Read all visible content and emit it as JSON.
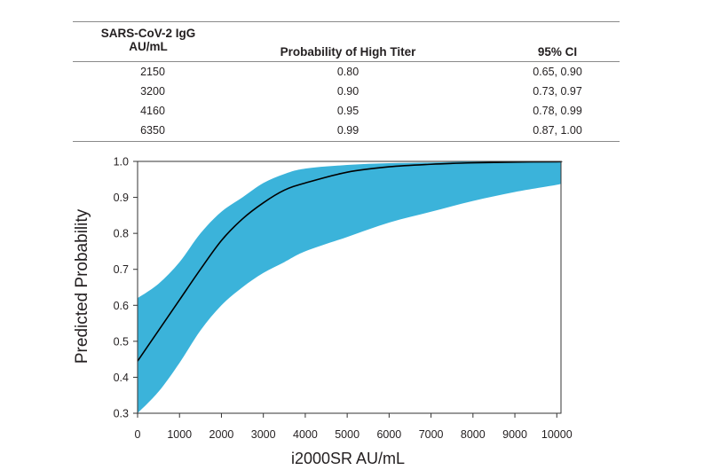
{
  "table": {
    "headers": {
      "col1_line1": "SARS-CoV-2 IgG",
      "col1_line2": "AU/mL",
      "col2": "Probability of High Titer",
      "col3": "95% CI"
    },
    "rows": [
      {
        "igg": "2150",
        "prob": "0.80",
        "ci": "0.65, 0.90"
      },
      {
        "igg": "3200",
        "prob": "0.90",
        "ci": "0.73, 0.97"
      },
      {
        "igg": "4160",
        "prob": "0.95",
        "ci": "0.78, 0.99"
      },
      {
        "igg": "6350",
        "prob": "0.99",
        "ci": "0.87, 1.00"
      }
    ]
  },
  "chart_data": {
    "type": "line",
    "title": "",
    "xlabel": "i2000SR AU/mL",
    "ylabel": "Predicted Probability",
    "xlim": [
      0,
      10100
    ],
    "ylim": [
      0.3,
      1.0
    ],
    "xticks": [
      0,
      1000,
      2000,
      3000,
      4000,
      5000,
      6000,
      7000,
      8000,
      9000,
      10000
    ],
    "yticks": [
      0.3,
      0.4,
      0.5,
      0.6,
      0.7,
      0.8,
      0.9,
      1.0
    ],
    "grid": false,
    "series": [
      {
        "type": "line",
        "color": "#000000",
        "x": [
          0,
          500,
          1000,
          1500,
          2000,
          2500,
          3000,
          3500,
          4000,
          5000,
          6000,
          7000,
          8000,
          9000,
          10000,
          10100
        ],
        "y": [
          0.445,
          0.53,
          0.615,
          0.7,
          0.78,
          0.84,
          0.885,
          0.92,
          0.94,
          0.97,
          0.985,
          0.992,
          0.996,
          0.998,
          0.999,
          0.999
        ]
      },
      {
        "type": "band",
        "color": "#3bb3da",
        "x": [
          0,
          500,
          1000,
          1500,
          2000,
          2500,
          3000,
          3500,
          4000,
          5000,
          6000,
          7000,
          8000,
          9000,
          10000,
          10100
        ],
        "lower": [
          0.3,
          0.36,
          0.44,
          0.53,
          0.6,
          0.65,
          0.69,
          0.72,
          0.75,
          0.79,
          0.83,
          0.86,
          0.89,
          0.915,
          0.935,
          0.94
        ],
        "upper": [
          0.62,
          0.66,
          0.72,
          0.8,
          0.86,
          0.9,
          0.94,
          0.965,
          0.98,
          0.99,
          0.995,
          0.997,
          0.999,
          1.0,
          1.0,
          1.0
        ]
      }
    ]
  }
}
